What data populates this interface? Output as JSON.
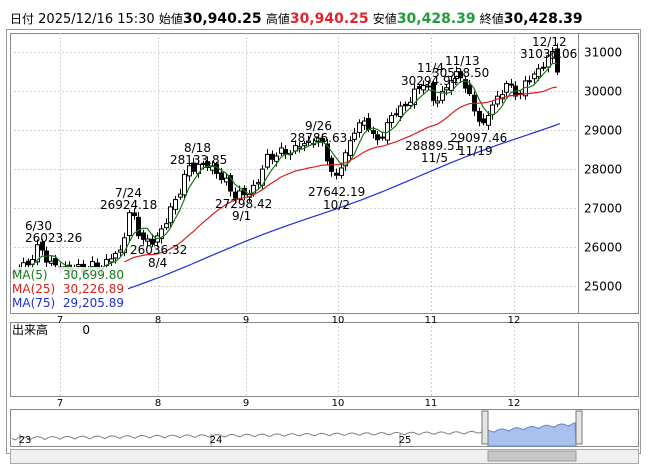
{
  "header": {
    "date_label": "日付",
    "datetime": "2025/12/16 15:30",
    "open_label": "始値",
    "open": "30,940.25",
    "high_label": "高値",
    "high": "30,940.25",
    "low_label": "安値",
    "low": "30,428.39",
    "close_label": "終値",
    "close": "30,428.39",
    "colors": {
      "high": "#e8222a",
      "low": "#1f9e3a",
      "text": "#000000"
    }
  },
  "legend": {
    "ma5_label": "MA(5)",
    "ma5_value": "30,699.80",
    "ma25_label": "MA(25)",
    "ma25_value": "30,226.89",
    "ma75_label": "MA(75)",
    "ma75_value": "29,205.89"
  },
  "volume_panel": {
    "label": "出来高",
    "value": "0"
  },
  "navigator": {
    "year_labels": [
      "23",
      "24",
      "25"
    ]
  },
  "chart_data": {
    "type": "candlestick",
    "title": "",
    "x_month_labels": [
      "7",
      "8",
      "9",
      "10",
      "11",
      "12"
    ],
    "y_ticks": [
      25000,
      26000,
      27000,
      28000,
      29000,
      30000,
      31000
    ],
    "ylim": [
      24300,
      31500
    ],
    "grid": true,
    "series": [
      {
        "name": "MA(5)",
        "color": "#1a7a1a"
      },
      {
        "name": "MA(25)",
        "color": "#d62020"
      },
      {
        "name": "MA(75)",
        "color": "#1f2fd6"
      }
    ],
    "annotations": [
      {
        "text": "6/30",
        "value": "26023.26"
      },
      {
        "text": "7/24",
        "value": "26924.18"
      },
      {
        "text": "8/4",
        "value": "26036.32"
      },
      {
        "text": "8/18",
        "value": "28133.85"
      },
      {
        "text": "9/1",
        "value": "27298.42"
      },
      {
        "text": "9/26",
        "value": "28786.63"
      },
      {
        "text": "10/2",
        "value": "27642.19"
      },
      {
        "text": "11/4",
        "value": "30294.94"
      },
      {
        "text": "11/5",
        "value": "28889.51"
      },
      {
        "text": "11/13",
        "value": "30538.50"
      },
      {
        "text": "11/19",
        "value": "29097.46"
      },
      {
        "text": "12/12",
        "value": "31036.06"
      }
    ],
    "line_colors": {
      "candle": "#000000",
      "grid": "#bfbfbf",
      "nav_fill": "#a9c1ee",
      "nav_line": "#808080"
    }
  }
}
